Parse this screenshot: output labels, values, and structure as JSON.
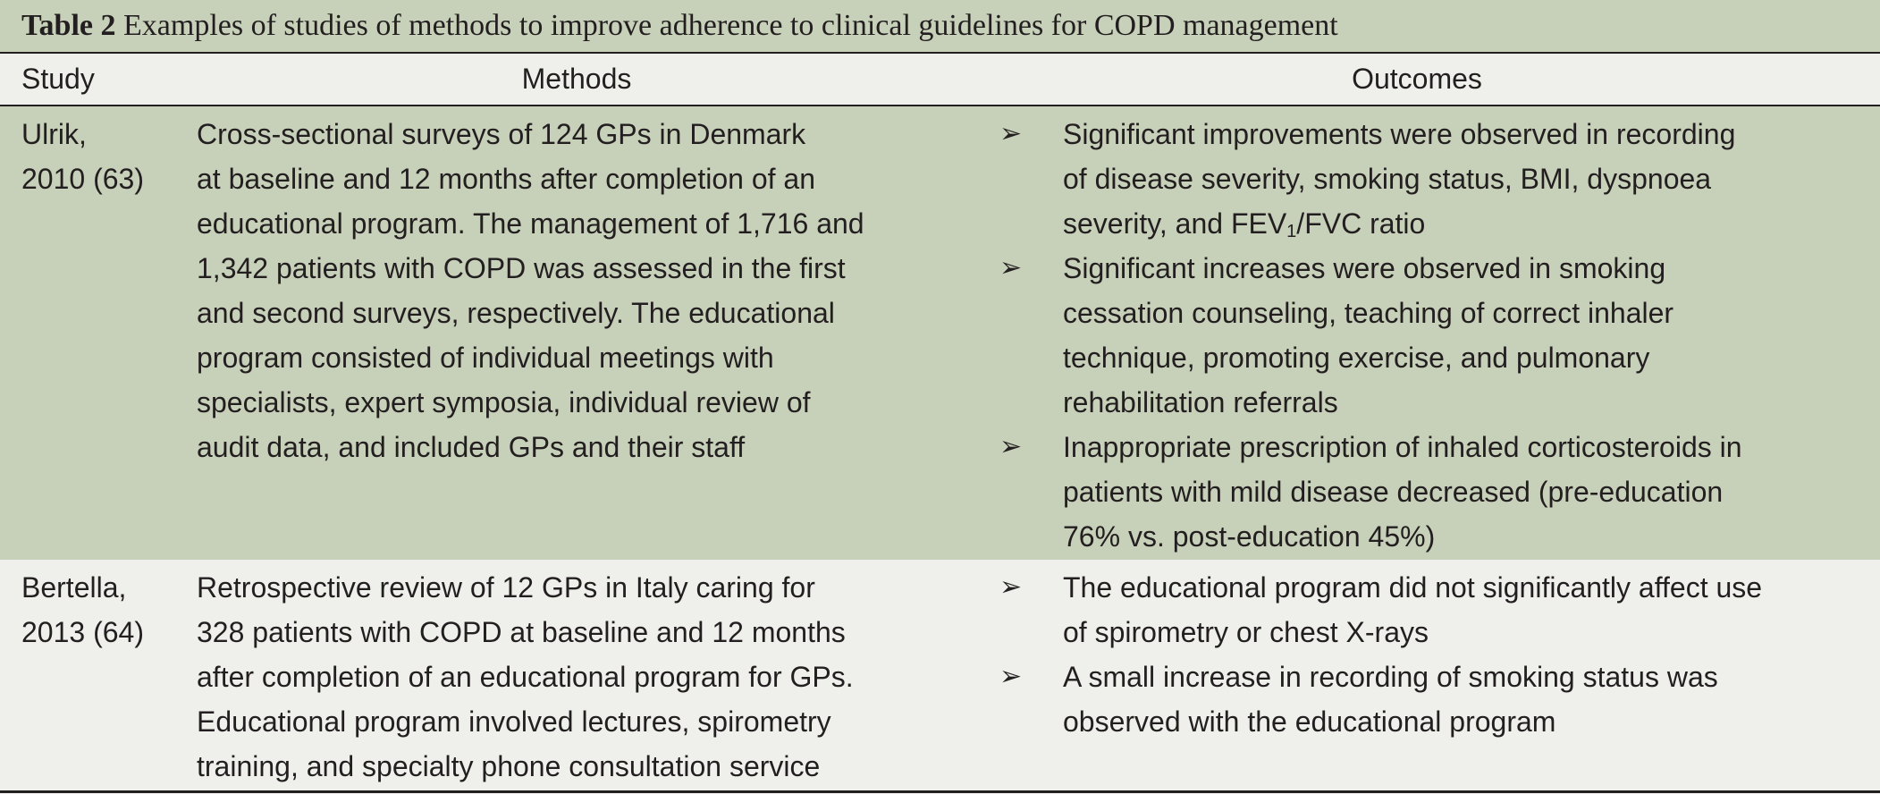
{
  "caption": {
    "label": "Table 2",
    "title": "Examples of studies of methods to improve adherence to clinical guidelines for COPD management"
  },
  "headers": {
    "study": "Study",
    "methods": "Methods",
    "outcomes": "Outcomes"
  },
  "rows": [
    {
      "study": [
        "Ulrik,",
        "2010 (63)"
      ],
      "methods": [
        "Cross-sectional surveys of 124 GPs in Denmark",
        "at baseline and 12 months after completion of an",
        "educational program. The management of 1,716 and",
        "1,342 patients with COPD was assessed in the first",
        "and second surveys, respectively. The educational",
        "program consisted of individual meetings with",
        "specialists, expert symposia, individual review of",
        "audit data, and included GPs and their staff"
      ],
      "outcomes": [
        {
          "lines": [
            "Significant improvements were observed in recording",
            "of disease severity, smoking status, BMI, dyspnoea"
          ],
          "last_line": {
            "pre": "severity, and FEV",
            "sub": "1",
            "post": "/FVC ratio"
          }
        },
        {
          "lines": [
            "Significant increases were observed in smoking",
            "cessation counseling, teaching of correct inhaler",
            "technique, promoting exercise, and pulmonary",
            "rehabilitation referrals"
          ]
        },
        {
          "lines": [
            "Inappropriate prescription of inhaled corticosteroids in",
            "patients with mild disease decreased (pre-education",
            "76% vs. post-education 45%)"
          ]
        }
      ]
    },
    {
      "study": [
        "Bertella,",
        "2013 (64)"
      ],
      "methods": [
        "Retrospective review of 12 GPs in Italy caring for",
        "328 patients with COPD at baseline and 12 months",
        "after completion of an educational program for GPs.",
        "Educational program involved lectures, spirometry",
        "training, and specialty phone consultation service"
      ],
      "outcomes": [
        {
          "lines": [
            "The educational program did not significantly affect use",
            "of spirometry or chest X-rays"
          ]
        },
        {
          "lines": [
            "A small increase in recording of smoking status was",
            "observed with the educational program"
          ]
        }
      ]
    }
  ],
  "bullet_icon": "arrowhead-bullet-icon",
  "colors": {
    "shaded_row": "#c7d0b8",
    "light_row": "#eff0eb",
    "text": "#231f20"
  }
}
